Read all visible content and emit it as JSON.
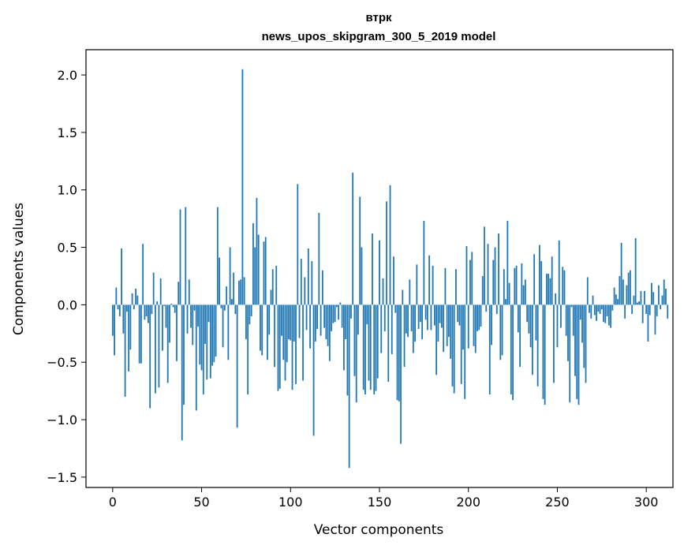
{
  "chart_data": {
    "type": "bar",
    "title": "втрк",
    "subtitle": "news_upos_skipgram_300_5_2019 model",
    "xlabel": "Vector components",
    "ylabel": "Components values",
    "xlim": [
      -15,
      315
    ],
    "ylim": [
      -1.59,
      2.22
    ],
    "xticks": [
      0,
      50,
      100,
      150,
      200,
      250,
      300
    ],
    "yticks": [
      -1.5,
      -1.0,
      -0.5,
      0.0,
      0.5,
      1.0,
      1.5,
      2.0
    ],
    "ytick_labels": [
      "−1.5",
      "−1.0",
      "−0.5",
      "0.0",
      "0.5",
      "1.0",
      "1.5",
      "2.0"
    ],
    "bar_color": "#1f77b4",
    "grid": false,
    "values": [
      -0.27,
      -0.44,
      0.15,
      -0.04,
      -0.1,
      0.49,
      -0.25,
      -0.8,
      -0.06,
      -0.58,
      -0.39,
      0.1,
      -0.04,
      0.14,
      0.08,
      -0.51,
      -0.51,
      0.53,
      -0.13,
      -0.1,
      -0.16,
      -0.9,
      -0.08,
      0.28,
      -0.77,
      0.03,
      -0.72,
      0.23,
      -0.4,
      -0.01,
      -0.2,
      -0.68,
      -0.33,
      0.01,
      -0.02,
      -0.07,
      -0.49,
      0.2,
      0.83,
      -1.18,
      -0.87,
      0.85,
      -0.25,
      0.22,
      -0.2,
      -0.35,
      -0.05,
      -0.92,
      -0.19,
      -0.52,
      -0.57,
      -0.78,
      -0.34,
      -0.65,
      -0.15,
      -0.64,
      -0.53,
      -0.5,
      -0.45,
      0.85,
      0.41,
      -0.03,
      -0.37,
      -0.05,
      0.16,
      -0.48,
      0.5,
      0.05,
      0.28,
      -0.08,
      -1.07,
      0.21,
      0.22,
      2.05,
      0.24,
      -0.3,
      -0.78,
      -0.17,
      -0.1,
      0.71,
      0.5,
      0.93,
      0.61,
      -0.4,
      -0.44,
      0.55,
      0.59,
      -0.48,
      -0.26,
      0.13,
      0.31,
      -0.54,
      0.34,
      -0.75,
      -0.73,
      -0.27,
      -0.48,
      -0.66,
      -0.5,
      -0.3,
      -0.31,
      -0.74,
      -0.32,
      -0.69,
      1.05,
      -0.29,
      0.4,
      -0.66,
      0.24,
      -0.22,
      0.49,
      -0.38,
      0.38,
      -1.14,
      -0.32,
      -0.21,
      0.8,
      -0.27,
      0.3,
      -0.2,
      -0.3,
      -0.36,
      -0.49,
      -0.23,
      -0.16,
      -0.15,
      -0.02,
      -0.13,
      0.02,
      -0.2,
      -0.57,
      -0.3,
      -0.79,
      -1.42,
      -0.12,
      1.15,
      -0.62,
      -0.85,
      -0.26,
      0.94,
      0.5,
      -0.74,
      -0.78,
      -0.17,
      -0.66,
      -0.74,
      0.62,
      -0.78,
      -0.75,
      -0.64,
      0.56,
      -0.42,
      0.23,
      -0.23,
      0.9,
      -0.67,
      1.04,
      -0.43,
      0.42,
      -0.07,
      -0.83,
      -0.84,
      -1.21,
      0.13,
      -0.54,
      -0.25,
      -0.28,
      0.22,
      -0.23,
      -0.42,
      -0.32,
      0.35,
      -0.21,
      -0.15,
      -0.3,
      0.73,
      -0.13,
      -0.22,
      0.43,
      -0.22,
      0.34,
      -0.18,
      -0.61,
      -0.32,
      -0.16,
      -0.2,
      -0.41,
      0.32,
      -0.36,
      -0.28,
      -0.47,
      -0.71,
      -0.77,
      0.31,
      -0.15,
      -0.18,
      -0.69,
      -0.39,
      -0.82,
      0.51,
      -0.38,
      0.39,
      0.46,
      -0.36,
      -0.42,
      -0.23,
      -0.22,
      -0.19,
      0.25,
      0.68,
      -0.06,
      0.53,
      -0.78,
      -0.35,
      0.39,
      0.5,
      -0.08,
      0.62,
      -0.48,
      -0.44,
      0.31,
      0.05,
      0.73,
      0.19,
      -0.78,
      -0.83,
      0.32,
      0.34,
      -0.24,
      -0.54,
      0.36,
      0.17,
      0.22,
      -0.15,
      -0.25,
      -0.37,
      -0.61,
      0.44,
      -0.31,
      -0.71,
      0.52,
      0.38,
      -0.82,
      -0.87,
      0.27,
      0.27,
      0.23,
      0.42,
      -0.68,
      0.1,
      -0.37,
      0.56,
      -0.2,
      0.33,
      0.3,
      -0.27,
      -0.49,
      -0.85,
      -0.02,
      -0.27,
      -0.62,
      -0.82,
      -0.87,
      -0.13,
      -0.33,
      -0.55,
      -0.68,
      0.24,
      -0.07,
      -0.12,
      0.08,
      -0.09,
      -0.14,
      -0.06,
      -0.08,
      -0.04,
      -0.15,
      -0.16,
      -0.1,
      -0.18,
      -0.2,
      -0.05,
      0.15,
      0.09,
      0.05,
      0.25,
      0.54,
      0.22,
      -0.12,
      0.17,
      0.28,
      0.3,
      -0.08,
      0.08,
      0.58,
      0.02,
      0.03,
      0.12,
      -0.16,
      0.12,
      -0.08,
      -0.32,
      -0.09,
      0.19,
      0.11,
      -0.26,
      -0.1,
      0.17,
      -0.04,
      0.08,
      0.22,
      0.14,
      -0.12
    ]
  }
}
